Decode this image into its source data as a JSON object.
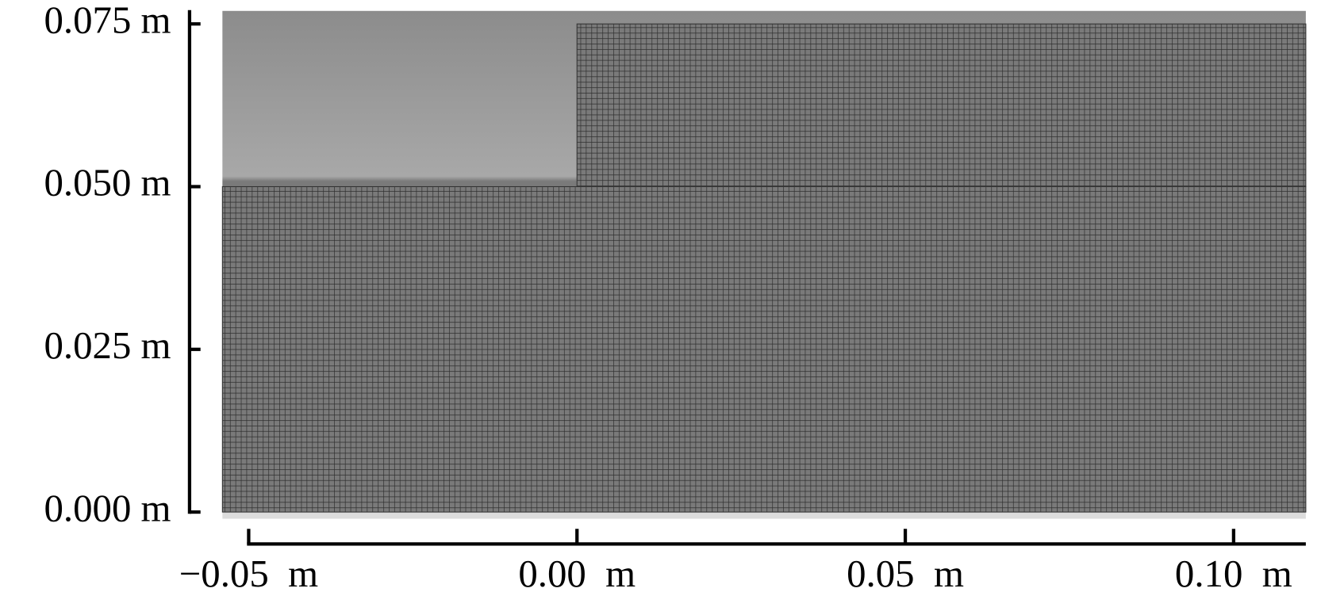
{
  "chart_data": {
    "type": "mesh",
    "xlim": [
      -0.054,
      0.111
    ],
    "ylim": [
      0,
      0.077
    ],
    "xticks": [
      {
        "value": -0.05,
        "label": "−0.05  m"
      },
      {
        "value": 0.0,
        "label": "0.00  m"
      },
      {
        "value": 0.05,
        "label": "0.05  m"
      },
      {
        "value": 0.1,
        "label": "0.10  m"
      }
    ],
    "yticks": [
      {
        "value": 0.0,
        "label": "0.000 m"
      },
      {
        "value": 0.025,
        "label": "0.025 m"
      },
      {
        "value": 0.05,
        "label": "0.050 m"
      },
      {
        "value": 0.075,
        "label": "0.075 m"
      }
    ],
    "regions": [
      {
        "x": [
          -0.054,
          0.111
        ],
        "y": [
          0,
          0.05
        ]
      },
      {
        "x": [
          0,
          0.111
        ],
        "y": [
          0.05,
          0.075
        ]
      }
    ],
    "color": "#7a7a7a"
  }
}
